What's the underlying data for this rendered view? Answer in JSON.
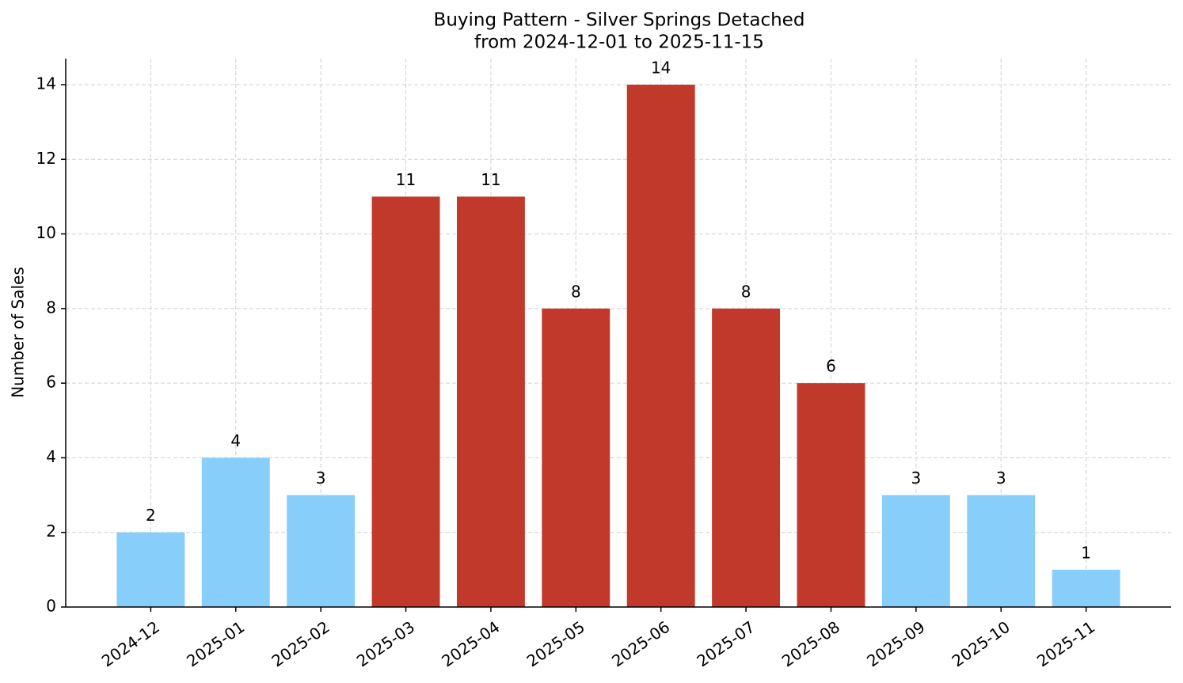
{
  "chart_data": {
    "type": "bar",
    "title": "Buying Pattern - Silver Springs Detached",
    "subtitle": "from 2024-12-01 to 2025-11-15",
    "y_label": "Number of Sales",
    "categories": [
      "2024-12",
      "2025-01",
      "2025-02",
      "2025-03",
      "2025-04",
      "2025-05",
      "2025-06",
      "2025-07",
      "2025-08",
      "2025-09",
      "2025-10",
      "2025-11"
    ],
    "values": [
      2,
      4,
      3,
      11,
      11,
      8,
      14,
      8,
      6,
      3,
      3,
      1
    ],
    "colors": [
      "#87cefa",
      "#87cefa",
      "#87cefa",
      "#c0392b",
      "#c0392b",
      "#c0392b",
      "#c0392b",
      "#c0392b",
      "#c0392b",
      "#87cefa",
      "#87cefa",
      "#87cefa"
    ],
    "ylim": [
      0,
      14.7
    ],
    "yticks": [
      0,
      2,
      4,
      6,
      8,
      10,
      12,
      14
    ],
    "grid": true
  }
}
